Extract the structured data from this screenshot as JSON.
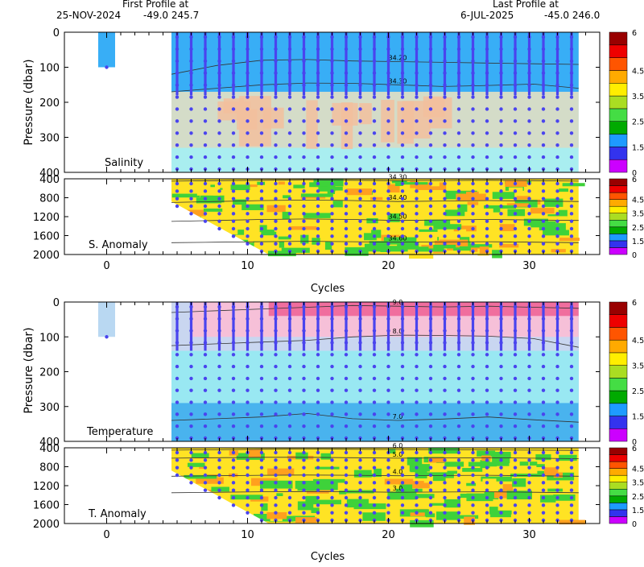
{
  "header": {
    "first_label": "First Profile at",
    "first_date": "25-NOV-2024",
    "first_pos": "-49.0  245.7",
    "last_label": "Last Profile at",
    "last_date": "6-JUL-2025",
    "last_pos": "-45.0  246.0"
  },
  "colors": {
    "colorbar": [
      "#cc00ff",
      "#3333ee",
      "#1e9bff",
      "#00aa00",
      "#44dd44",
      "#aadd22",
      "#ffee00",
      "#ffaa00",
      "#ff5500",
      "#ee0000",
      "#990000"
    ],
    "profile": "#4a44ee",
    "shallow_profile": "#5fb2ec",
    "salinity_surface": "#38aef6",
    "salinity_mid": "#d4dcc8",
    "salinity_peach": "#f2c09e",
    "salinity_deep": "#a9eef0",
    "temp_warm": "#f06e9e",
    "temp_light": "#f6c0d8",
    "temp_mid": "#99e8f2",
    "temp_deep": "#49b3ee",
    "anom_yellow": "#ffe324",
    "anom_green": "#3ed23a",
    "anom_orange": "#ffa01e"
  },
  "chart_data": [
    {
      "name": "salinity",
      "type": "heatmap",
      "label": "Salinity",
      "ylabel": "Pressure (dbar)",
      "xlim": [
        -3,
        35
      ],
      "ylim": [
        400,
        0
      ],
      "yticks": [
        "0",
        "100",
        "200",
        "300",
        "400"
      ],
      "contours": [
        {
          "label": "34.20",
          "depth": [
            120,
            95,
            80,
            78,
            82,
            84,
            86,
            88,
            90,
            92
          ]
        },
        {
          "label": "34.30",
          "depth": [
            170,
            160,
            150,
            145,
            146,
            150,
            155,
            152,
            148,
            160
          ]
        }
      ],
      "profiles": {
        "cycles": [
          0,
          5,
          6,
          7,
          8,
          9,
          10,
          11,
          12,
          13,
          14,
          15,
          16,
          17,
          18,
          19,
          20,
          21,
          22,
          23,
          24,
          25,
          26,
          27,
          28,
          29,
          30,
          31,
          32,
          33
        ],
        "max_depth": 400
      }
    },
    {
      "name": "salinity_anomaly",
      "type": "heatmap",
      "label": "S. Anomaly",
      "xlim": [
        -3,
        35
      ],
      "ylim": [
        2000,
        400
      ],
      "yticks": [
        "400",
        "800",
        "1200",
        "1600",
        "2000"
      ],
      "contours": [
        {
          "label": "34.30",
          "depth": [
            450,
            440,
            430,
            420,
            430,
            440,
            435,
            430,
            440,
            450
          ]
        },
        {
          "label": "34.40",
          "depth": [
            900,
            880,
            860,
            850,
            860,
            880,
            870,
            860,
            870,
            880
          ]
        },
        {
          "label": "34.50",
          "depth": [
            1300,
            1280,
            1260,
            1250,
            1260,
            1280,
            1270,
            1260,
            1270,
            1280
          ]
        },
        {
          "label": "34.60",
          "depth": [
            1750,
            1740,
            1730,
            1720,
            1730,
            1740,
            1735,
            1730,
            1740,
            1750
          ]
        }
      ],
      "xticks": [
        "0",
        "10",
        "20",
        "30"
      ],
      "xlabel": "Cycles"
    },
    {
      "name": "temperature",
      "type": "heatmap",
      "label": "Temperature",
      "ylabel": "Pressure (dbar)",
      "xlim": [
        -3,
        35
      ],
      "ylim": [
        400,
        0
      ],
      "yticks": [
        "0",
        "100",
        "200",
        "300",
        "400"
      ],
      "contours": [
        {
          "label": "9.0",
          "depth": [
            30,
            25,
            20,
            15,
            10,
            12,
            14,
            12,
            15,
            18
          ]
        },
        {
          "label": "8.0",
          "depth": [
            125,
            120,
            115,
            110,
            100,
            95,
            96,
            98,
            105,
            130
          ]
        },
        {
          "label": "7.0",
          "depth": [
            340,
            335,
            330,
            320,
            335,
            340,
            336,
            330,
            338,
            345
          ]
        }
      ]
    },
    {
      "name": "temperature_anomaly",
      "type": "heatmap",
      "label": "T. Anomaly",
      "xlim": [
        -3,
        35
      ],
      "ylim": [
        2000,
        400
      ],
      "yticks": [
        "400",
        "800",
        "1200",
        "1600",
        "2000"
      ],
      "contours": [
        {
          "label": "6.0",
          "depth": [
            450,
            440,
            430,
            425,
            430,
            435,
            440,
            445,
            450,
            455
          ]
        },
        {
          "label": "5.0",
          "depth": [
            620,
            610,
            600,
            600,
            610,
            620,
            615,
            610,
            620,
            630
          ]
        },
        {
          "label": "4.0",
          "depth": [
            1000,
            990,
            980,
            975,
            980,
            990,
            985,
            980,
            990,
            1000
          ]
        },
        {
          "label": "3.0",
          "depth": [
            1350,
            1340,
            1330,
            1325,
            1330,
            1340,
            1335,
            1330,
            1340,
            1350
          ]
        }
      ],
      "xticks": [
        "0",
        "10",
        "20",
        "30"
      ],
      "xlabel": "Cycles"
    }
  ],
  "colorbar": {
    "labels": [
      "6",
      "4.5",
      "3.5",
      "2.5",
      "1.5",
      "0"
    ]
  }
}
